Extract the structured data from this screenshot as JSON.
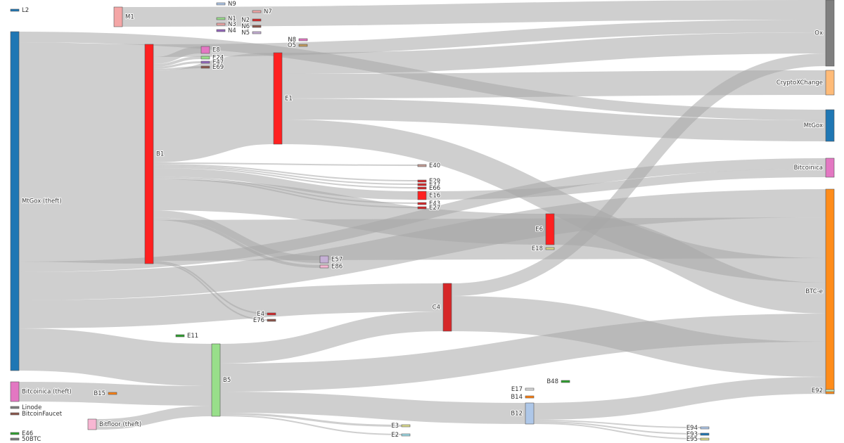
{
  "chart_data": {
    "type": "sankey",
    "nodes": [
      {
        "name": "L2",
        "color": "#1f77b4"
      },
      {
        "name": "M1",
        "color": "#f4a6a6"
      },
      {
        "name": "N9",
        "color": "#aec7e8"
      },
      {
        "name": "N7",
        "color": "#f4a6a6"
      },
      {
        "name": "N1",
        "color": "#98df8a"
      },
      {
        "name": "N3",
        "color": "#f4a6a6"
      },
      {
        "name": "N4",
        "color": "#9467bd"
      },
      {
        "name": "N2",
        "color": "#d62728"
      },
      {
        "name": "N6",
        "color": "#8c564b"
      },
      {
        "name": "N5",
        "color": "#c5b0d5"
      },
      {
        "name": "N8",
        "color": "#e377c2"
      },
      {
        "name": "O5",
        "color": "#c49c5a"
      },
      {
        "name": "Ox",
        "color": "#7f7f7f"
      },
      {
        "name": "E8",
        "color": "#e377c2"
      },
      {
        "name": "E24",
        "color": "#98df8a"
      },
      {
        "name": "E47",
        "color": "#9467bd"
      },
      {
        "name": "E69",
        "color": "#8c564b"
      },
      {
        "name": "E1",
        "color": "#ff2020"
      },
      {
        "name": "B1",
        "color": "#ff2020"
      },
      {
        "name": "MtGox (theft)",
        "color": "#1f77b4"
      },
      {
        "name": "CryptoXChange",
        "color": "#ffbb78"
      },
      {
        "name": "MtGox",
        "color": "#1f77b4"
      },
      {
        "name": "Bitcoinica",
        "color": "#e377c2"
      },
      {
        "name": "E40",
        "color": "#c49c94"
      },
      {
        "name": "E29",
        "color": "#d62728"
      },
      {
        "name": "E37",
        "color": "#d62728"
      },
      {
        "name": "E66",
        "color": "#d62728"
      },
      {
        "name": "E16",
        "color": "#ff2020"
      },
      {
        "name": "E43",
        "color": "#d62728"
      },
      {
        "name": "E27",
        "color": "#d62728"
      },
      {
        "name": "E6",
        "color": "#ff2020"
      },
      {
        "name": "E18",
        "color": "#dbdb8d"
      },
      {
        "name": "E57",
        "color": "#c5b0d5"
      },
      {
        "name": "E86",
        "color": "#f7b6d2"
      },
      {
        "name": "E4",
        "color": "#d62728"
      },
      {
        "name": "E76",
        "color": "#8c564b"
      },
      {
        "name": "C4",
        "color": "#d62728"
      },
      {
        "name": "BTC-e",
        "color": "#ff8c1a"
      },
      {
        "name": "E11",
        "color": "#2ca02c"
      },
      {
        "name": "B5",
        "color": "#98df8a"
      },
      {
        "name": "B15",
        "color": "#ff7f0e"
      },
      {
        "name": "Bitcoinica (theft)",
        "color": "#e377c2"
      },
      {
        "name": "Linode",
        "color": "#7f7f7f"
      },
      {
        "name": "BitcoinFaucet",
        "color": "#8c564b"
      },
      {
        "name": "E46",
        "color": "#2ca02c"
      },
      {
        "name": "50BTC",
        "color": "#7f7f7f"
      },
      {
        "name": "Bitfloor (theft)",
        "color": "#f7b6d2"
      },
      {
        "name": "E17",
        "color": "#dddddd"
      },
      {
        "name": "B14",
        "color": "#ff7f0e"
      },
      {
        "name": "B48",
        "color": "#2ca02c"
      },
      {
        "name": "B12",
        "color": "#aec7e8"
      },
      {
        "name": "E92",
        "color": "#c7e9c0"
      },
      {
        "name": "E3",
        "color": "#dbdb8d"
      },
      {
        "name": "E2",
        "color": "#9edae5"
      },
      {
        "name": "E94",
        "color": "#aec7e8"
      },
      {
        "name": "E93",
        "color": "#1f77b4"
      },
      {
        "name": "E95",
        "color": "#dbdb8d"
      }
    ],
    "links": [
      {
        "source": "MtGox (theft)",
        "target": "MtGox",
        "value": 15
      },
      {
        "source": "MtGox (theft)",
        "target": "B1",
        "value": 312
      },
      {
        "source": "MtGox (theft)",
        "target": "Bitcoinica",
        "value": 15
      },
      {
        "source": "MtGox (theft)",
        "target": "BTC-e",
        "value": 40
      },
      {
        "source": "MtGox (theft)",
        "target": "C4",
        "value": 40
      },
      {
        "source": "MtGox (theft)",
        "target": "B5",
        "value": 60
      },
      {
        "source": "M1",
        "target": "Ox",
        "value": 28
      },
      {
        "source": "B1",
        "target": "Ox",
        "value": 18
      },
      {
        "source": "B1",
        "target": "E8",
        "value": 10
      },
      {
        "source": "B1",
        "target": "E24",
        "value": 4
      },
      {
        "source": "B1",
        "target": "E47",
        "value": 3
      },
      {
        "source": "B1",
        "target": "E69",
        "value": 3
      },
      {
        "source": "B1",
        "target": "E1",
        "value": 130
      },
      {
        "source": "B1",
        "target": "E40",
        "value": 2
      },
      {
        "source": "B1",
        "target": "E29",
        "value": 2
      },
      {
        "source": "B1",
        "target": "E37",
        "value": 2
      },
      {
        "source": "B1",
        "target": "E66",
        "value": 2
      },
      {
        "source": "B1",
        "target": "E16",
        "value": 12
      },
      {
        "source": "B1",
        "target": "E43",
        "value": 2
      },
      {
        "source": "B1",
        "target": "E27",
        "value": 2
      },
      {
        "source": "B1",
        "target": "E6",
        "value": 44
      },
      {
        "source": "B1",
        "target": "E57",
        "value": 10
      },
      {
        "source": "B1",
        "target": "E86",
        "value": 4
      },
      {
        "source": "B1",
        "target": "BTC-e",
        "value": 58
      },
      {
        "source": "B1",
        "target": "E4",
        "value": 2
      },
      {
        "source": "B1",
        "target": "E76",
        "value": 2
      },
      {
        "source": "E1",
        "target": "Ox",
        "value": 30
      },
      {
        "source": "E1",
        "target": "CryptoXChange",
        "value": 35
      },
      {
        "source": "E1",
        "target": "MtGox",
        "value": 30
      },
      {
        "source": "E1",
        "target": "BTC-e",
        "value": 35
      },
      {
        "source": "E16",
        "target": "Bitcoinica",
        "value": 12
      },
      {
        "source": "E6",
        "target": "BTC-e",
        "value": 44
      },
      {
        "source": "Bitcoinica (theft)",
        "target": "B5",
        "value": 28
      },
      {
        "source": "Bitfloor (theft)",
        "target": "B5",
        "value": 15
      },
      {
        "source": "B5",
        "target": "C4",
        "value": 28
      },
      {
        "source": "B5",
        "target": "BTC-e",
        "value": 40
      },
      {
        "source": "B5",
        "target": "B12",
        "value": 30
      },
      {
        "source": "B5",
        "target": "E3",
        "value": 3
      },
      {
        "source": "B5",
        "target": "E2",
        "value": 2
      },
      {
        "source": "C4",
        "target": "Ox",
        "value": 18
      },
      {
        "source": "C4",
        "target": "BTC-e",
        "value": 50
      },
      {
        "source": "B12",
        "target": "BTC-e",
        "value": 24
      },
      {
        "source": "B12",
        "target": "E94",
        "value": 2
      },
      {
        "source": "B12",
        "target": "E93",
        "value": 2
      },
      {
        "source": "B12",
        "target": "E95",
        "value": 2
      }
    ]
  }
}
